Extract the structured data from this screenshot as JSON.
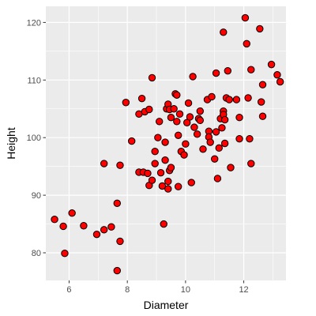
{
  "chart_data": {
    "type": "scatter",
    "xlabel": "Diameter",
    "ylabel": "Height",
    "xlim": [
      5.2,
      13.45
    ],
    "ylim": [
      75.2,
      122.8
    ],
    "x_ticks": [
      6,
      8,
      10,
      12
    ],
    "y_ticks": [
      80,
      90,
      100,
      110,
      120
    ],
    "x_tick_labels": [
      "6",
      "8",
      "10",
      "12"
    ],
    "y_tick_labels": [
      "80",
      "90",
      "100",
      "110",
      "120"
    ],
    "grid": true,
    "legend": "none",
    "point_color": "#ff0000",
    "point_edge_color": "#000000",
    "panel_color": "#ebebeb",
    "grid_color": "#ffffff",
    "points": [
      [
        5.5,
        85.8
      ],
      [
        5.8,
        84.6
      ],
      [
        5.85,
        79.9
      ],
      [
        6.1,
        86.9
      ],
      [
        6.5,
        84.7
      ],
      [
        6.95,
        83.2
      ],
      [
        7.2,
        84.0
      ],
      [
        7.45,
        84.5
      ],
      [
        7.2,
        95.5
      ],
      [
        7.65,
        76.9
      ],
      [
        7.65,
        88.6
      ],
      [
        7.75,
        82.0
      ],
      [
        7.75,
        95.2
      ],
      [
        7.95,
        106.1
      ],
      [
        8.15,
        99.4
      ],
      [
        8.4,
        104.1
      ],
      [
        8.4,
        94.0
      ],
      [
        8.5,
        106.8
      ],
      [
        8.55,
        94.0
      ],
      [
        8.6,
        104.5
      ],
      [
        8.7,
        93.8
      ],
      [
        8.75,
        104.9
      ],
      [
        8.75,
        91.7
      ],
      [
        8.85,
        92.6
      ],
      [
        8.85,
        110.4
      ],
      [
        8.95,
        95.5
      ],
      [
        8.95,
        97.6
      ],
      [
        9.05,
        100.0
      ],
      [
        9.1,
        102.8
      ],
      [
        9.15,
        93.9
      ],
      [
        9.2,
        91.6
      ],
      [
        9.25,
        85.0
      ],
      [
        9.3,
        96.1
      ],
      [
        9.3,
        99.2
      ],
      [
        9.35,
        105.0
      ],
      [
        9.4,
        105.8
      ],
      [
        9.4,
        92.4
      ],
      [
        9.4,
        91.1
      ],
      [
        9.45,
        94.3
      ],
      [
        9.45,
        104.9
      ],
      [
        9.5,
        103.5
      ],
      [
        9.5,
        94.8
      ],
      [
        9.6,
        105.0
      ],
      [
        9.65,
        107.6
      ],
      [
        9.7,
        107.4
      ],
      [
        9.7,
        102.8
      ],
      [
        9.75,
        100.4
      ],
      [
        9.75,
        91.5
      ],
      [
        9.8,
        104.1
      ],
      [
        9.85,
        97.6
      ],
      [
        9.95,
        97.0
      ],
      [
        10.0,
        98.9
      ],
      [
        10.05,
        102.6
      ],
      [
        10.1,
        106.0
      ],
      [
        10.15,
        103.6
      ],
      [
        10.2,
        92.2
      ],
      [
        10.25,
        110.6
      ],
      [
        10.3,
        101.8
      ],
      [
        10.4,
        100.6
      ],
      [
        10.45,
        103.3
      ],
      [
        10.5,
        104.6
      ],
      [
        10.5,
        103.0
      ],
      [
        10.6,
        98.0
      ],
      [
        10.75,
        106.6
      ],
      [
        10.8,
        101.1
      ],
      [
        10.8,
        100.1
      ],
      [
        10.85,
        99.2
      ],
      [
        10.9,
        107.1
      ],
      [
        11.0,
        96.3
      ],
      [
        11.05,
        111.2
      ],
      [
        11.05,
        101.0
      ],
      [
        11.1,
        92.9
      ],
      [
        11.15,
        98.2
      ],
      [
        11.2,
        103.3
      ],
      [
        11.25,
        101.7
      ],
      [
        11.3,
        118.3
      ],
      [
        11.3,
        104.6
      ],
      [
        11.3,
        104.0
      ],
      [
        11.35,
        103.1
      ],
      [
        11.35,
        99.0
      ],
      [
        11.4,
        106.9
      ],
      [
        11.45,
        111.6
      ],
      [
        11.5,
        106.6
      ],
      [
        11.55,
        94.8
      ],
      [
        11.75,
        106.6
      ],
      [
        11.85,
        103.5
      ],
      [
        11.85,
        99.8
      ],
      [
        12.05,
        120.8
      ],
      [
        12.1,
        116.3
      ],
      [
        12.15,
        106.9
      ],
      [
        12.2,
        99.8
      ],
      [
        12.25,
        95.5
      ],
      [
        12.25,
        111.8
      ],
      [
        12.55,
        118.9
      ],
      [
        12.6,
        106.2
      ],
      [
        12.65,
        103.7
      ],
      [
        12.65,
        109.2
      ],
      [
        12.95,
        112.7
      ],
      [
        13.15,
        110.9
      ],
      [
        13.25,
        109.7
      ]
    ]
  }
}
